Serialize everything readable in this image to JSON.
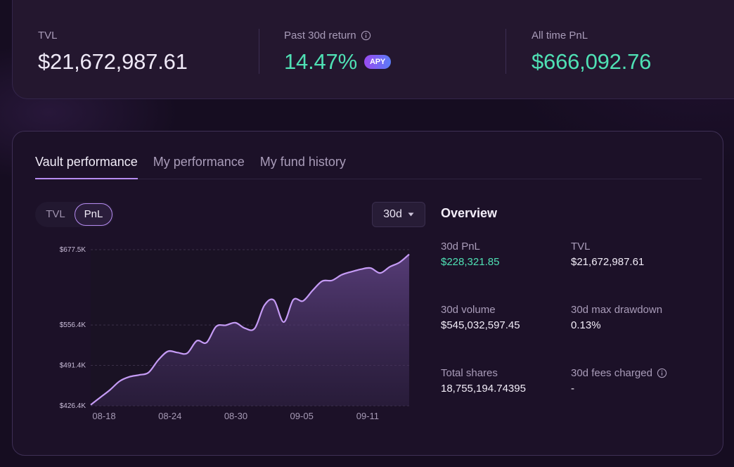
{
  "stats": {
    "tvl_label": "TVL",
    "tvl_value": "$21,672,987.61",
    "return_label": "Past 30d return",
    "return_value": "14.47%",
    "apy_badge": "APY",
    "pnl_label": "All time PnL",
    "pnl_value": "$666,092.76"
  },
  "tabs": [
    {
      "label": "Vault performance",
      "active": true
    },
    {
      "label": "My performance",
      "active": false
    },
    {
      "label": "My fund history",
      "active": false
    }
  ],
  "toggle": {
    "options": [
      "TVL",
      "PnL"
    ],
    "selected": "PnL"
  },
  "range_select": {
    "value": "30d"
  },
  "chart_data": {
    "type": "area",
    "title": "",
    "xlabel": "",
    "ylabel": "",
    "y_tick_labels": [
      "$677.5K",
      "$556.4K",
      "$491.4K",
      "$426.4K"
    ],
    "y_ticks": [
      677.5,
      556.4,
      491.4,
      426.4
    ],
    "ylim": [
      426.4,
      677.5
    ],
    "x_tick_labels": [
      "08-18",
      "08-24",
      "08-30",
      "09-05",
      "09-11"
    ],
    "x_ticks": [
      0,
      6,
      12,
      18,
      24
    ],
    "xlim": [
      0,
      29
    ],
    "grid": true,
    "series": [
      {
        "values": [
          428,
          440,
          452,
          466,
          473,
          476,
          480,
          500,
          514,
          512,
          511,
          531,
          528,
          554,
          556,
          560,
          551,
          551,
          588,
          596,
          561,
          597,
          595,
          612,
          627,
          628,
          637,
          642,
          646,
          648,
          640,
          650,
          657,
          670
        ]
      }
    ],
    "series_x_step": 0.8787
  },
  "overview": {
    "title": "Overview",
    "items": [
      {
        "key": "30d PnL",
        "value": "$228,321.85",
        "green": true,
        "info": false
      },
      {
        "key": "TVL",
        "value": "$21,672,987.61",
        "green": false,
        "info": false
      },
      {
        "key": "30d volume",
        "value": "$545,032,597.45",
        "green": false,
        "info": false
      },
      {
        "key": "30d max drawdown",
        "value": "0.13%",
        "green": false,
        "info": false
      },
      {
        "key": "Total shares",
        "value": "18,755,194.74395",
        "green": false,
        "info": false
      },
      {
        "key": "30d fees charged",
        "value": "-",
        "green": false,
        "info": true
      }
    ]
  },
  "colors": {
    "accent": "#b68cf1",
    "positive": "#4fe0b4",
    "line": "#c59bf5"
  }
}
